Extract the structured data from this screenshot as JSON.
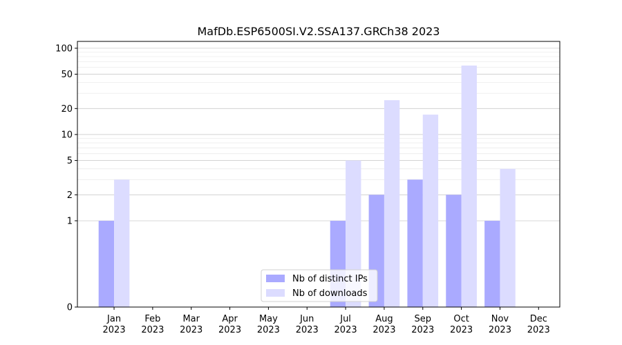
{
  "chart_data": {
    "type": "bar",
    "title": "MafDb.ESP6500SI.V2.SSA137.GRCh38 2023",
    "xlabel": "",
    "ylabel": "",
    "yscale": "symlog",
    "ylim": [
      0,
      120
    ],
    "yticks": [
      0,
      1,
      2,
      5,
      10,
      20,
      50,
      100
    ],
    "ytick_labels": [
      "0",
      "1",
      "2",
      "5",
      "10",
      "20",
      "50",
      "100"
    ],
    "grid": "y",
    "legend_position": "bottom-center",
    "categories": [
      "Jan\n2023",
      "Feb\n2023",
      "Mar\n2023",
      "Apr\n2023",
      "May\n2023",
      "Jun\n2023",
      "Jul\n2023",
      "Aug\n2023",
      "Sep\n2023",
      "Oct\n2023",
      "Nov\n2023",
      "Dec\n2023"
    ],
    "series": [
      {
        "name": "Nb of distinct IPs",
        "color": "#aaaaff",
        "values": [
          1,
          0,
          0,
          0,
          0,
          0,
          1,
          2,
          3,
          2,
          1,
          0
        ]
      },
      {
        "name": "Nb of downloads",
        "color": "#dcdcff",
        "values": [
          3,
          0,
          0,
          0,
          0,
          0,
          5,
          25,
          17,
          63,
          4,
          0
        ]
      }
    ]
  }
}
